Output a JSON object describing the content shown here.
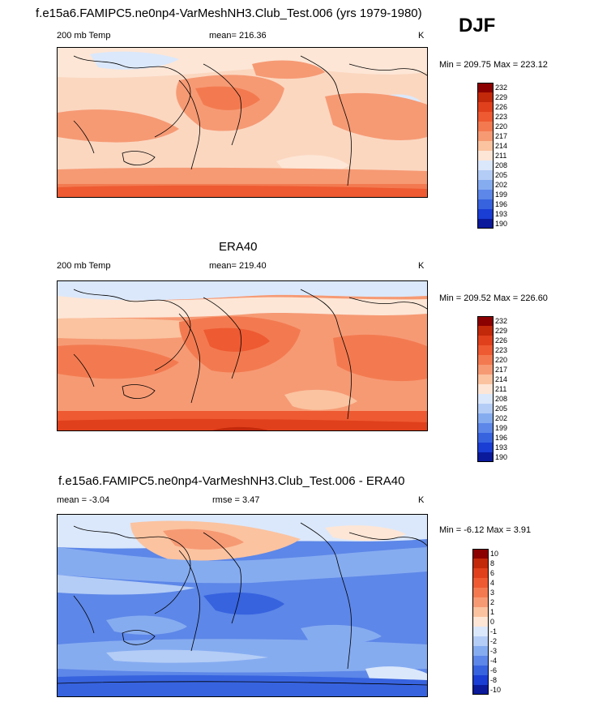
{
  "season": "DJF",
  "panels": [
    {
      "id": "model",
      "title": "f.e15a6.FAMIPC5.ne0np4-VarMeshNH3.Club_Test.006 (yrs 1979-1980)",
      "left_label": "200 mb Temp",
      "center_label": "mean= 216.36",
      "units": "K",
      "range_text": "Min = 209.75 Max = 223.12",
      "colorbar_levels": [
        "232",
        "229",
        "226",
        "223",
        "220",
        "217",
        "214",
        "211",
        "208",
        "205",
        "202",
        "199",
        "196",
        "193",
        "190"
      ]
    },
    {
      "id": "obs",
      "title": "ERA40",
      "left_label": "200 mb Temp",
      "center_label": "mean= 219.40",
      "units": "K",
      "range_text": "Min = 209.52 Max = 226.60",
      "colorbar_levels": [
        "232",
        "229",
        "226",
        "223",
        "220",
        "217",
        "214",
        "211",
        "208",
        "205",
        "202",
        "199",
        "196",
        "193",
        "190"
      ]
    },
    {
      "id": "diff",
      "title": "f.e15a6.FAMIPC5.ne0np4-VarMeshNH3.Club_Test.006 - ERA40",
      "left_label": "mean =  -3.04",
      "center_label": "rmse =   3.47",
      "units": "K",
      "range_text": "Min =  -6.12 Max =   3.91",
      "colorbar_levels": [
        "10",
        "8",
        "6",
        "4",
        "3",
        "2",
        "1",
        "0",
        "-1",
        "-2",
        "-3",
        "-4",
        "-6",
        "-8",
        "-10"
      ]
    }
  ],
  "colors": {
    "warm_scale": [
      "#8b0000",
      "#c2280a",
      "#e0401c",
      "#ee5a32",
      "#f37a50",
      "#f69a74",
      "#fbc3a0",
      "#fde6d6",
      "#dbe8fb",
      "#b4cdf6",
      "#86acf0",
      "#5d87e8",
      "#3763df",
      "#1a3dd3",
      "#0a1a9a"
    ],
    "diff_scale": [
      "#8b0000",
      "#c2280a",
      "#e0401c",
      "#ee5a32",
      "#f37a50",
      "#f69a74",
      "#fbc3a0",
      "#fde6d6",
      "#dbe8fb",
      "#b4cdf6",
      "#86acf0",
      "#5d87e8",
      "#3763df",
      "#1a3dd3",
      "#0a1a9a"
    ]
  },
  "chart_data": [
    {
      "type": "heatmap",
      "title": "f.e15a6.FAMIPC5.ne0np4-VarMeshNH3.Club_Test.006 (yrs 1979-1980)",
      "variable": "200 mb Temp",
      "units": "K",
      "mean": 216.36,
      "min": 209.75,
      "max": 223.12,
      "contour_levels": [
        190,
        193,
        196,
        199,
        202,
        205,
        208,
        211,
        214,
        217,
        220,
        223,
        226,
        229,
        232
      ]
    },
    {
      "type": "heatmap",
      "title": "ERA40",
      "variable": "200 mb Temp",
      "units": "K",
      "mean": 219.4,
      "min": 209.52,
      "max": 226.6,
      "contour_levels": [
        190,
        193,
        196,
        199,
        202,
        205,
        208,
        211,
        214,
        217,
        220,
        223,
        226,
        229,
        232
      ]
    },
    {
      "type": "heatmap",
      "title": "f.e15a6.FAMIPC5.ne0np4-VarMeshNH3.Club_Test.006 - ERA40",
      "units": "K",
      "mean": -3.04,
      "rmse": 3.47,
      "min": -6.12,
      "max": 3.91,
      "contour_levels": [
        -10,
        -8,
        -6,
        -4,
        -3,
        -2,
        -1,
        0,
        1,
        2,
        3,
        4,
        6,
        8,
        10
      ]
    }
  ]
}
